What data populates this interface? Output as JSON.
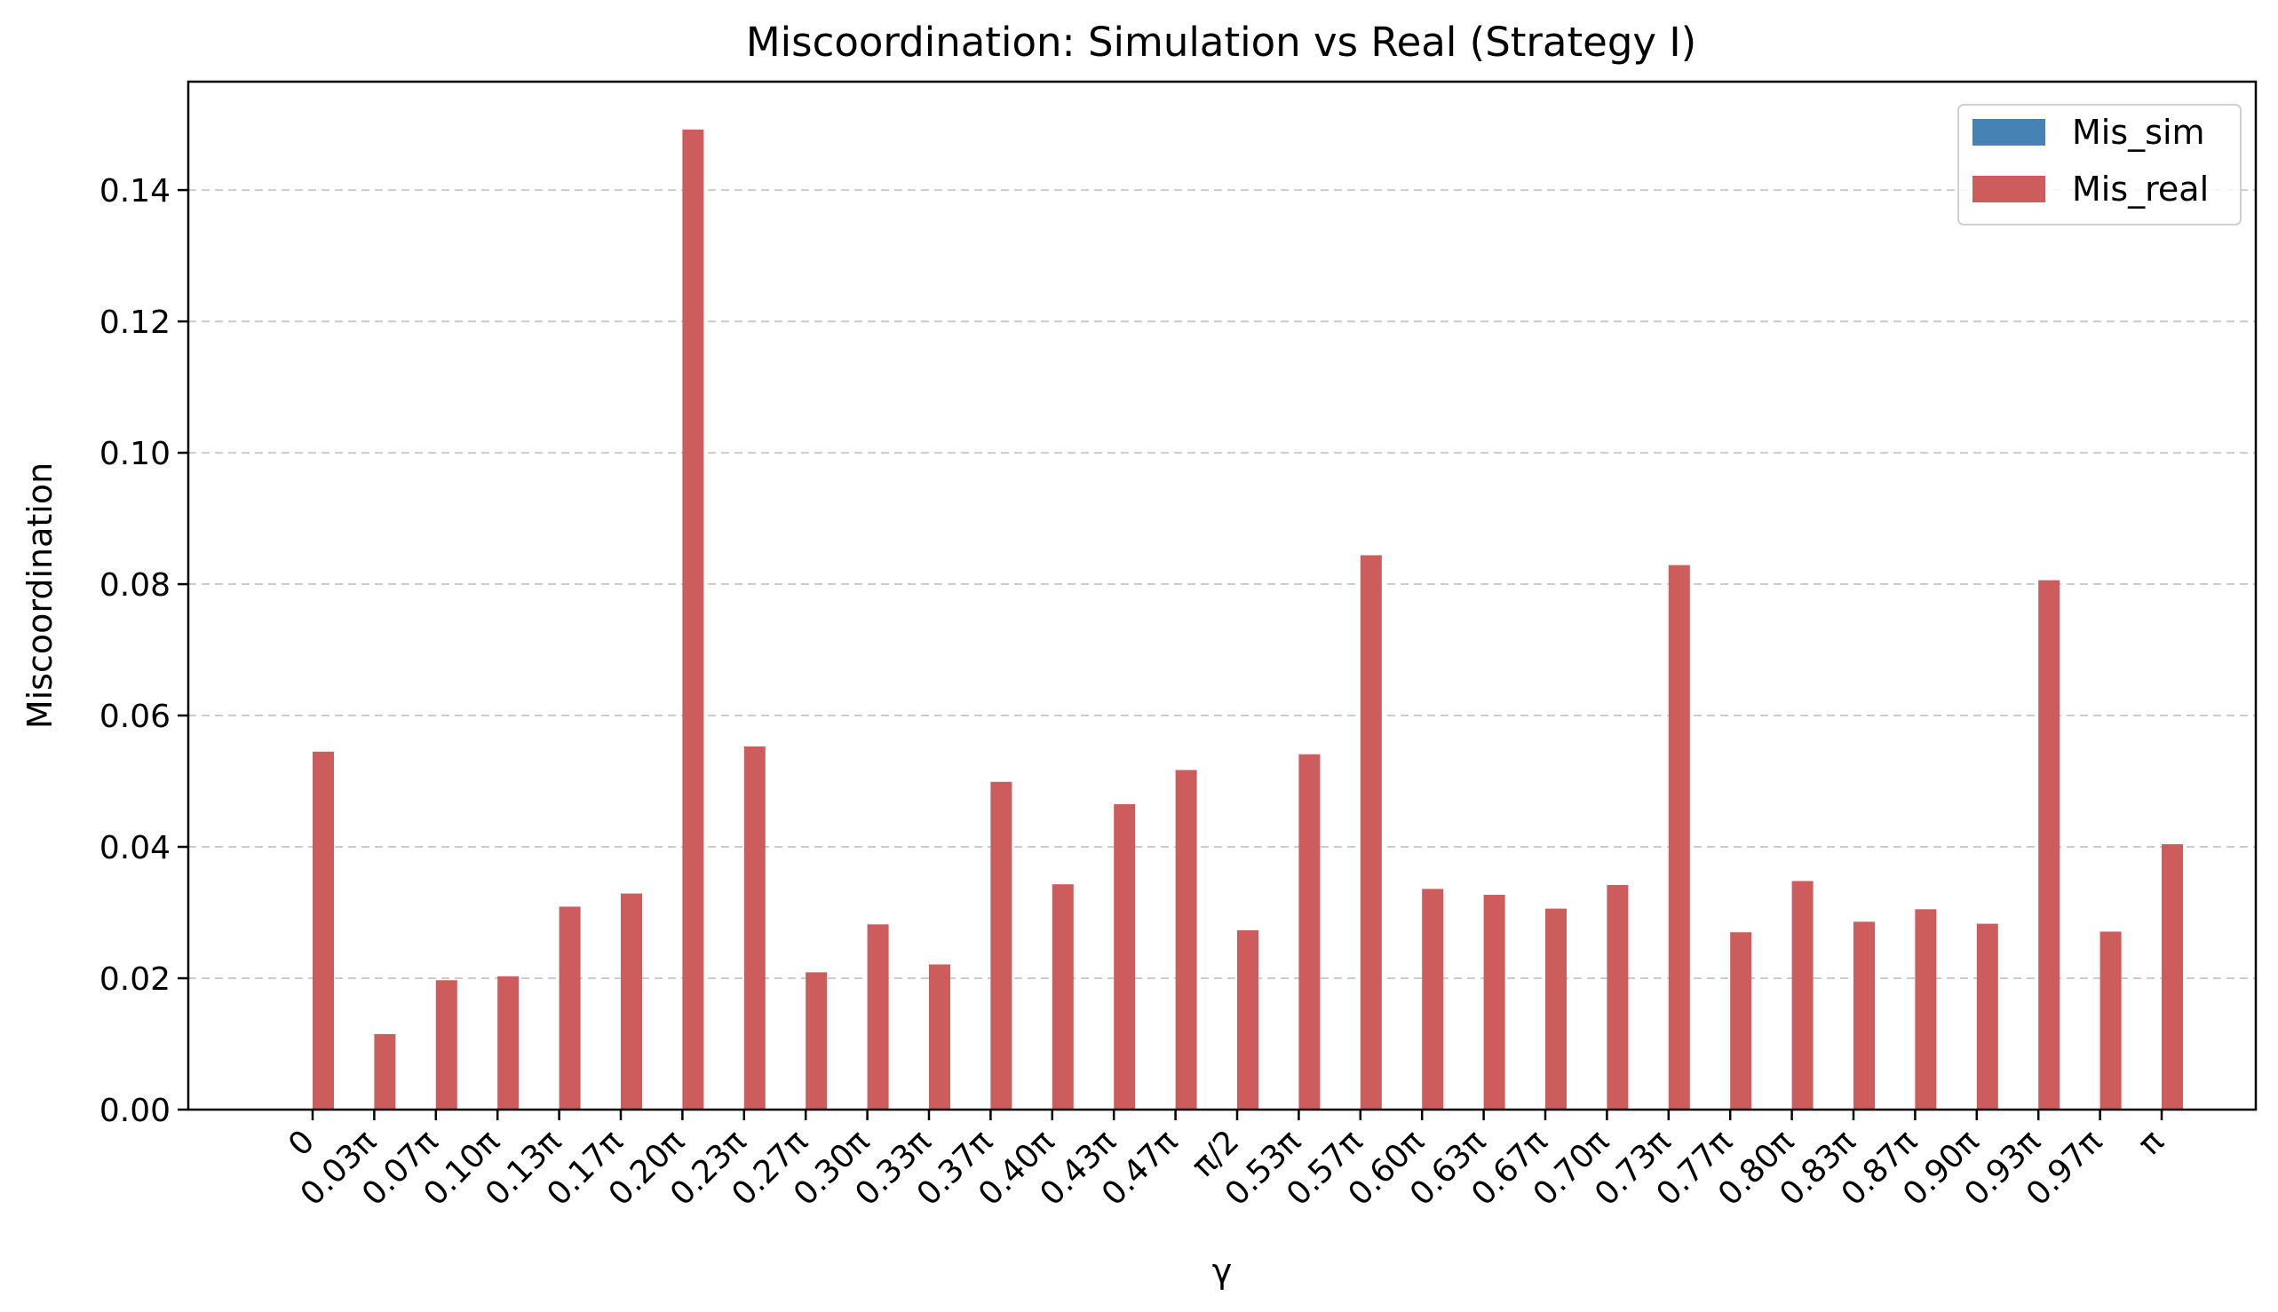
{
  "chart_data": {
    "type": "bar",
    "title": "Miscoordination: Simulation vs Real (Strategy I)",
    "xlabel": "γ",
    "ylabel": "Miscoordination",
    "ylim": [
      0,
      0.1565
    ],
    "yticks": [
      0.0,
      0.02,
      0.04,
      0.06,
      0.08,
      0.1,
      0.12,
      0.14
    ],
    "ytick_labels": [
      "0.00",
      "0.02",
      "0.04",
      "0.06",
      "0.08",
      "0.10",
      "0.12",
      "0.14"
    ],
    "grid": "y-dashed",
    "legend_position": "top-right",
    "categories": [
      "0",
      "0.03π",
      "0.07π",
      "0.10π",
      "0.13π",
      "0.17π",
      "0.20π",
      "0.23π",
      "0.27π",
      "0.30π",
      "0.33π",
      "0.37π",
      "0.40π",
      "0.43π",
      "0.47π",
      "π/2",
      "0.53π",
      "0.57π",
      "0.60π",
      "0.63π",
      "0.67π",
      "0.70π",
      "0.73π",
      "0.77π",
      "0.80π",
      "0.83π",
      "0.87π",
      "0.90π",
      "0.93π",
      "0.97π",
      "π"
    ],
    "series": [
      {
        "name": "Mis_sim",
        "color": "#4682b4",
        "values": [
          0,
          0,
          0,
          0,
          0,
          0,
          0,
          0,
          0,
          0,
          0,
          0,
          0,
          0,
          0,
          0,
          0,
          0,
          0,
          0,
          0,
          0,
          0,
          0,
          0,
          0,
          0,
          0,
          0,
          0,
          0
        ]
      },
      {
        "name": "Mis_real",
        "color": "#cd5c5c",
        "values": [
          0.0545,
          0.0115,
          0.0197,
          0.0203,
          0.0309,
          0.0329,
          0.1492,
          0.0553,
          0.0209,
          0.0282,
          0.0221,
          0.0499,
          0.0343,
          0.0465,
          0.0517,
          0.0273,
          0.0541,
          0.0844,
          0.0336,
          0.0327,
          0.0306,
          0.0342,
          0.0829,
          0.027,
          0.0348,
          0.0286,
          0.0305,
          0.0283,
          0.0806,
          0.0271,
          0.0404
        ]
      }
    ]
  }
}
